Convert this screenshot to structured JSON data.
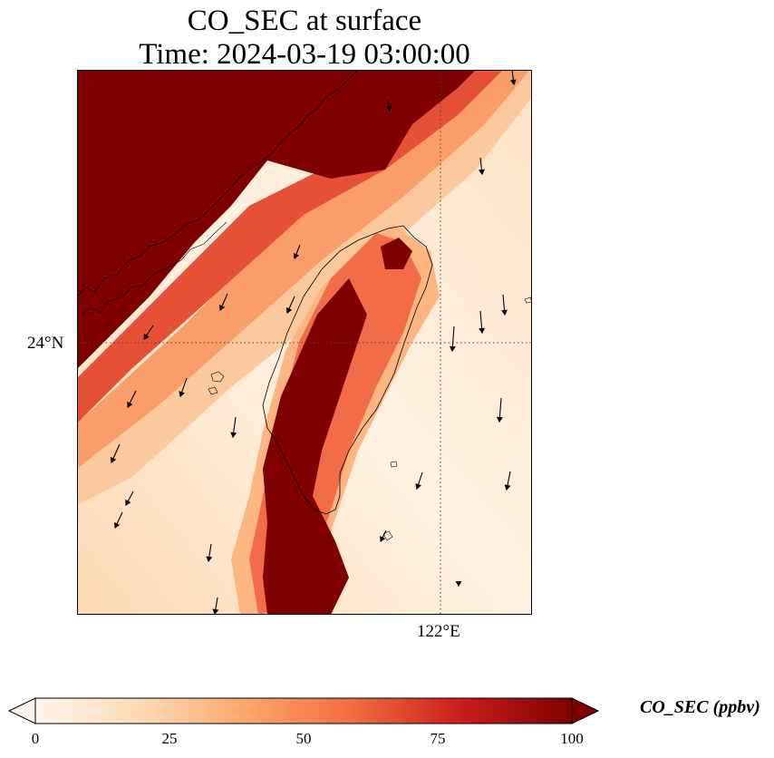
{
  "title": {
    "line1": "CO_SEC at surface",
    "line2": "Time: 2024-03-19 03:00:00"
  },
  "map": {
    "lat_tick": "24°N",
    "lon_tick": "122°E",
    "gridlines": "dotted",
    "coastline_color": "#000000"
  },
  "colorbar": {
    "label": "CO_SEC (ppbv)",
    "ticks": [
      "0",
      "25",
      "50",
      "75",
      "100"
    ],
    "min": 0,
    "max": 100,
    "extend": "both",
    "colormap": [
      "#fff5eb",
      "#fdd9b4",
      "#fda566",
      "#f06a3b",
      "#c71c1c",
      "#7f0000"
    ]
  }
}
